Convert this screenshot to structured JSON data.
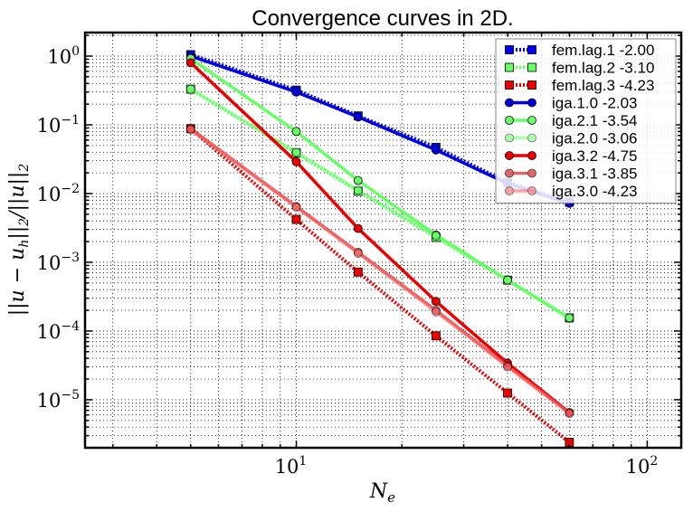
{
  "chart_data": {
    "type": "line",
    "title": "Convergence curves in 2D.",
    "xlabel": "N_e",
    "ylabel": "||u − u_h||_2/||u||_2",
    "xscale": "log",
    "yscale": "log",
    "xlim": [
      2.5,
      125
    ],
    "ylim": [
      2e-06,
      2.2
    ],
    "grid": true,
    "legend_position": "top-right",
    "x_ticks": [
      {
        "base": "10",
        "exp": "1",
        "value": 10
      },
      {
        "base": "10",
        "exp": "2",
        "value": 100
      }
    ],
    "y_ticks": [
      {
        "base": "10",
        "exp": "0",
        "value": 1
      },
      {
        "base": "10",
        "exp": "−1",
        "value": 0.1
      },
      {
        "base": "10",
        "exp": "−2",
        "value": 0.01
      },
      {
        "base": "10",
        "exp": "−3",
        "value": 0.001
      },
      {
        "base": "10",
        "exp": "−4",
        "value": 0.0001
      },
      {
        "base": "10",
        "exp": "−5",
        "value": 1e-05
      }
    ],
    "series": [
      {
        "name": "fem.lag.1 -2.00",
        "color": "#0000ff",
        "alpha": 1.0,
        "style": "dotted",
        "marker": "square",
        "x": [
          5,
          10,
          15,
          25,
          40,
          60
        ],
        "y": [
          1.05,
          0.32,
          0.135,
          0.047,
          0.0145,
          0.0075
        ]
      },
      {
        "name": "fem.lag.2 -3.10",
        "color": "#66ff66",
        "alpha": 1.0,
        "style": "dotted",
        "marker": "square",
        "x": [
          5,
          10,
          15,
          25,
          40,
          60
        ],
        "y": [
          0.33,
          0.039,
          0.0108,
          0.0023,
          0.00055,
          0.000155
        ]
      },
      {
        "name": "fem.lag.3 -4.23",
        "color": "#ee0000",
        "alpha": 1.0,
        "style": "dotted",
        "marker": "square",
        "x": [
          5,
          10,
          15,
          25,
          40,
          60
        ],
        "y": [
          0.088,
          0.0042,
          0.00072,
          8.5e-05,
          1.25e-05,
          2.4e-06
        ]
      },
      {
        "name": "iga.1.0 -2.03",
        "color": "#0000dd",
        "alpha": 1.0,
        "style": "solid",
        "marker": "circle",
        "x": [
          5,
          10,
          15,
          25,
          40,
          60
        ],
        "y": [
          1.0,
          0.3,
          0.13,
          0.043,
          0.014,
          0.0072
        ]
      },
      {
        "name": "iga.2.1 -3.54",
        "color": "#66ff66",
        "alpha": 1.0,
        "style": "solid",
        "marker": "circle",
        "x": [
          5,
          10,
          15,
          25,
          40,
          60
        ],
        "y": [
          0.92,
          0.08,
          0.0155,
          0.0025,
          0.00055,
          0.000155
        ]
      },
      {
        "name": "iga.2.0 -3.06",
        "color": "#66ff66",
        "alpha": 0.55,
        "style": "solid",
        "marker": "circle",
        "x": [
          5,
          10,
          15,
          25,
          40,
          60
        ],
        "y": [
          0.33,
          0.04,
          0.0112,
          0.0024,
          0.00055,
          0.000155
        ]
      },
      {
        "name": "iga.3.2 -4.75",
        "color": "#ee0000",
        "alpha": 1.0,
        "style": "solid",
        "marker": "circle",
        "x": [
          5,
          10,
          15,
          25,
          40,
          60
        ],
        "y": [
          0.8,
          0.029,
          0.0031,
          0.00027,
          3.4e-05,
          6.5e-06
        ]
      },
      {
        "name": "iga.3.1 -3.85",
        "color": "#dd3333",
        "alpha": 0.75,
        "style": "solid",
        "marker": "circle",
        "x": [
          5,
          10,
          15,
          25,
          40,
          60
        ],
        "y": [
          0.088,
          0.0065,
          0.0014,
          0.0002,
          3.1e-05,
          6.5e-06
        ]
      },
      {
        "name": "iga.3.0 -4.23",
        "color": "#ff6666",
        "alpha": 0.6,
        "style": "solid",
        "marker": "circle",
        "x": [
          5,
          10,
          15,
          25,
          40,
          60
        ],
        "y": [
          0.085,
          0.0063,
          0.00135,
          0.00019,
          3e-05,
          6.3e-06
        ]
      }
    ]
  }
}
